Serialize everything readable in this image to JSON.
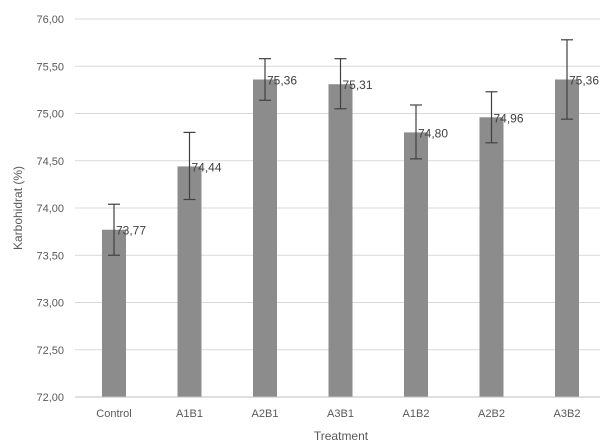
{
  "chart_data": {
    "type": "bar",
    "title": "",
    "xlabel": "Treatment",
    "ylabel": "Karbohidrat (%)",
    "ylim": [
      72,
      76
    ],
    "y_ticks": [
      "72,00",
      "72,50",
      "73,00",
      "73,50",
      "74,00",
      "74,50",
      "75,00",
      "75,50",
      "76,00"
    ],
    "y_tick_values": [
      72,
      72.5,
      73,
      73.5,
      74,
      74.5,
      75,
      75.5,
      76
    ],
    "categories": [
      "Control",
      "A1B1",
      "A2B1",
      "A3B1",
      "A1B2",
      "A2B2",
      "A3B2"
    ],
    "values": [
      73.77,
      74.44,
      75.36,
      75.31,
      74.8,
      74.96,
      75.36
    ],
    "value_labels": [
      "73,77",
      "74,44",
      "75,36",
      "75,31",
      "74,80",
      "74,96",
      "75,36"
    ],
    "error_bars": [
      {
        "low": 73.5,
        "high": 74.04
      },
      {
        "low": 74.09,
        "high": 74.8
      },
      {
        "low": 75.14,
        "high": 75.58
      },
      {
        "low": 75.05,
        "high": 75.58
      },
      {
        "low": 74.52,
        "high": 75.09
      },
      {
        "low": 74.69,
        "high": 75.23
      },
      {
        "low": 74.94,
        "high": 75.78
      }
    ],
    "grid": true,
    "legend": "none",
    "colors": {
      "bar": "#8c8c8c",
      "grid": "#d9d9d9",
      "text": "#595959"
    }
  }
}
